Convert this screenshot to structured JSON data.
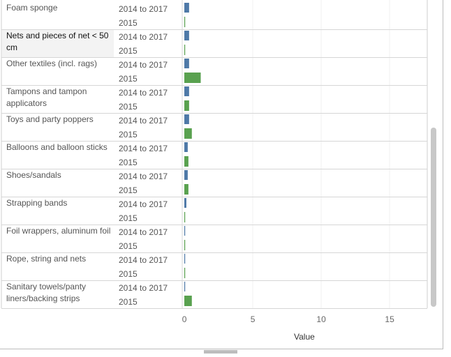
{
  "chart_data": {
    "type": "bar",
    "orientation": "horizontal",
    "xlabel": "Value",
    "xticks": [
      0,
      5,
      10,
      15
    ],
    "xlim": [
      0,
      17.5
    ],
    "grid": true,
    "categories": [
      "Foam sponge",
      "Nets and pieces of net < 50 cm",
      "Other textiles (incl. rags)",
      "Tampons and tampon applicators",
      "Toys and party poppers",
      "Balloons and balloon sticks",
      "Shoes/sandals",
      "Strapping bands",
      "Foil wrappers, aluminum foil",
      "Rope, string and nets",
      "Sanitary towels/panty liners/backing strips"
    ],
    "series": [
      {
        "name": "2014 to 2017",
        "color": "#4e79a7",
        "values": [
          0.35,
          0.35,
          0.35,
          0.35,
          0.35,
          0.25,
          0.25,
          0.15,
          0.05,
          0.05,
          0.05
        ]
      },
      {
        "name": "2015",
        "color": "#59a14f",
        "values": [
          0.05,
          0.05,
          1.2,
          0.35,
          0.55,
          0.3,
          0.3,
          0.05,
          0.05,
          0.05,
          0.55
        ]
      }
    ]
  }
}
